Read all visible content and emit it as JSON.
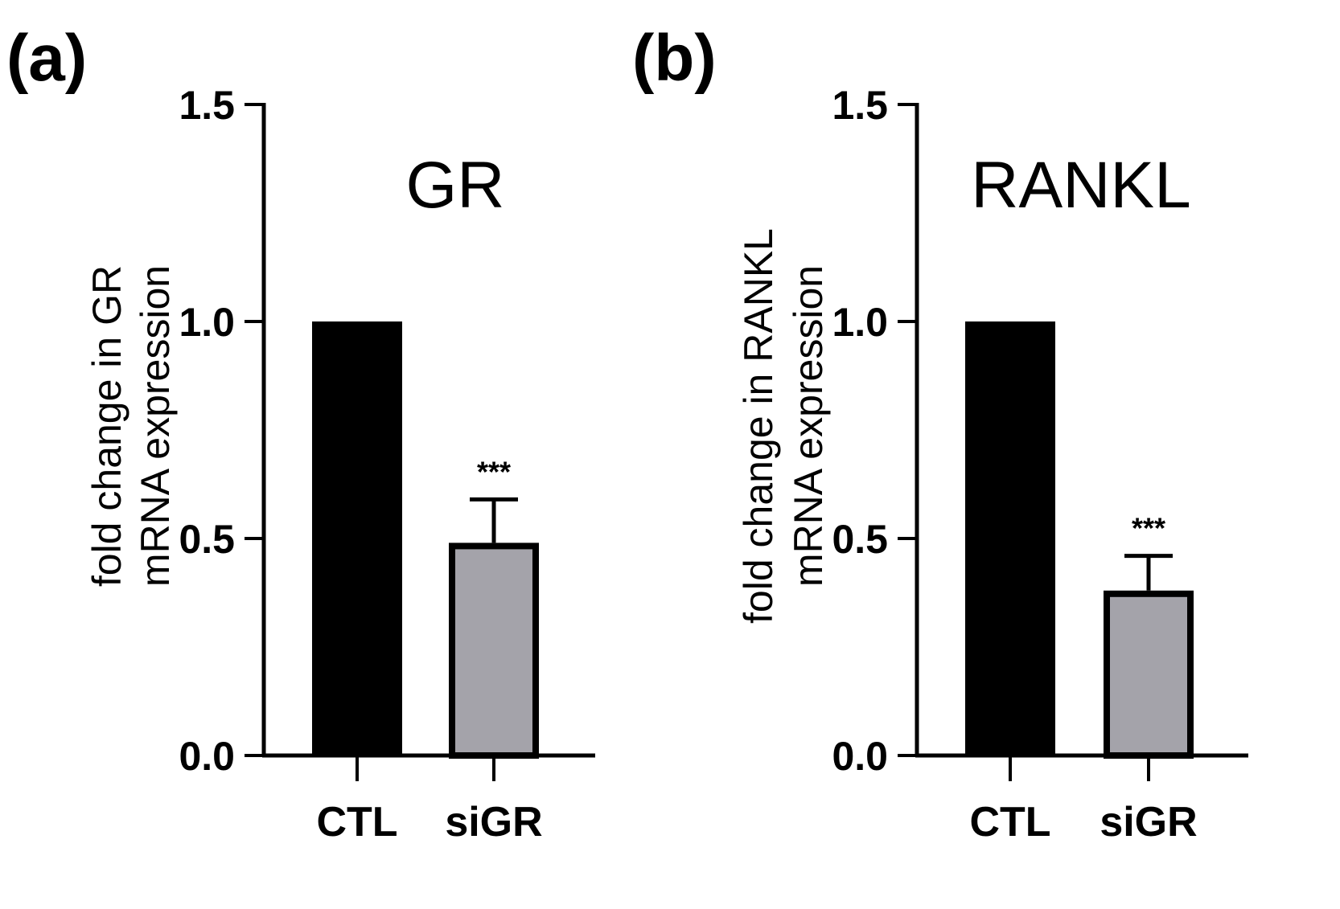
{
  "chart_data": [
    {
      "type": "bar",
      "panel_label": "(a)",
      "title": "GR",
      "ylabel_line1": "fold change in GR",
      "ylabel_line2": "mRNA expression",
      "xlabel": "",
      "categories": [
        "CTL",
        "siGR"
      ],
      "values": [
        1.0,
        0.49
      ],
      "errors": [
        0,
        0.1
      ],
      "bar_colors": [
        "#000000",
        "#a4a3aa"
      ],
      "significance": [
        "",
        "***"
      ],
      "ylim": [
        0,
        1.5
      ],
      "yticks": [
        0.0,
        0.5,
        1.0,
        1.5
      ],
      "ytick_labels": [
        "0.0",
        "0.5",
        "1.0",
        "1.5"
      ],
      "grid": false
    },
    {
      "type": "bar",
      "panel_label": "(b)",
      "title": "RANKL",
      "ylabel_line1": "fold change in RANKL",
      "ylabel_line2": "mRNA expression",
      "xlabel": "",
      "categories": [
        "CTL",
        "siGR"
      ],
      "values": [
        1.0,
        0.38
      ],
      "errors": [
        0,
        0.08
      ],
      "bar_colors": [
        "#000000",
        "#a4a3aa"
      ],
      "significance": [
        "",
        "***"
      ],
      "ylim": [
        0,
        1.5
      ],
      "yticks": [
        0.0,
        0.5,
        1.0,
        1.5
      ],
      "ytick_labels": [
        "0.0",
        "0.5",
        "1.0",
        "1.5"
      ],
      "grid": false
    }
  ]
}
